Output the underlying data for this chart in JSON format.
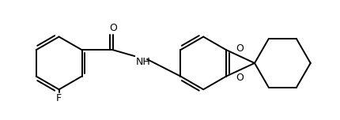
{
  "line_color": "#000000",
  "background_color": "#ffffff",
  "line_width": 1.4,
  "F_label": "F",
  "O_label": "O",
  "NH_label": "NH",
  "figsize": [
    4.3,
    1.52
  ],
  "dpi": 100
}
